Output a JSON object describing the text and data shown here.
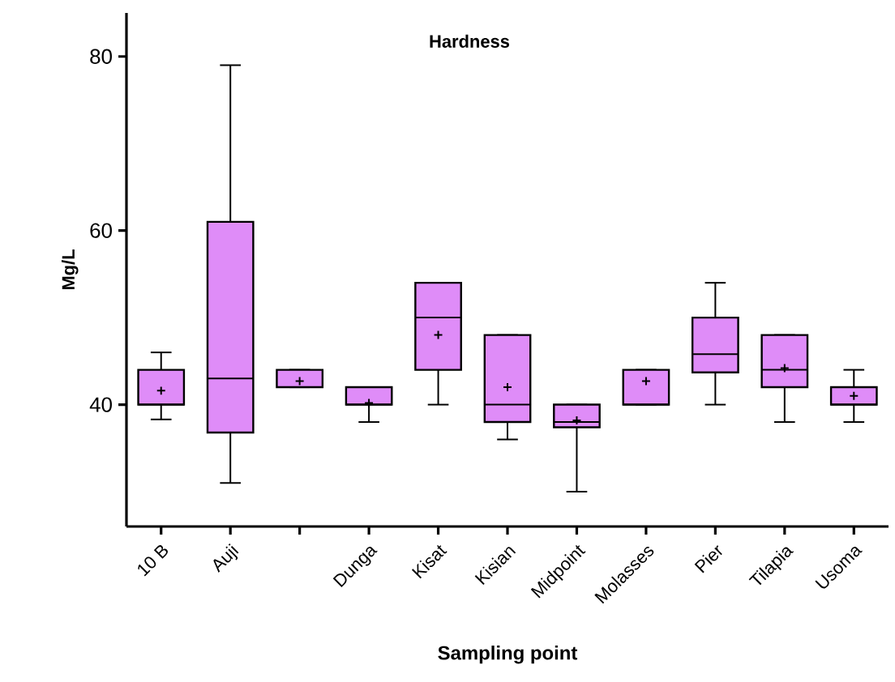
{
  "chart_data": {
    "type": "box",
    "title": "Hardness",
    "xlabel": "Sampling point",
    "ylabel": "Mg/L",
    "categories": [
      "10 B",
      "Auji",
      null,
      "Dunga",
      "Kisat",
      "Kisian",
      "Midpoint",
      "Molasses",
      "Pier",
      "Tilapia",
      "Usoma"
    ],
    "color": "#df8cf8",
    "boxes": [
      {
        "low": 38.3,
        "q1": 40,
        "median": 40,
        "q3": 44,
        "high": 46,
        "mean": 41.6
      },
      {
        "low": 31,
        "q1": 36.8,
        "median": 43,
        "q3": 61,
        "high": 79
      },
      {
        "low": 42,
        "q1": 42,
        "median": 42,
        "q3": 44,
        "high": 44,
        "mean": 42.7
      },
      {
        "low": 38,
        "q1": 40,
        "median": 40,
        "q3": 42,
        "high": 42,
        "mean": 40.2
      },
      {
        "low": 40,
        "q1": 44,
        "median": 50,
        "q3": 54,
        "high": 54,
        "mean": 48
      },
      {
        "low": 36,
        "q1": 38,
        "median": 40,
        "q3": 48,
        "high": 48,
        "mean": 42
      },
      {
        "low": 30,
        "q1": 37.4,
        "median": 38,
        "q3": 40,
        "high": 40,
        "mean": 38.2
      },
      {
        "low": 40,
        "q1": 40,
        "median": 40,
        "q3": 44,
        "high": 44,
        "mean": 42.7
      },
      {
        "low": 40,
        "q1": 43.7,
        "median": 45.8,
        "q3": 50,
        "high": 54
      },
      {
        "low": 38,
        "q1": 42,
        "median": 44,
        "q3": 48,
        "high": 48,
        "mean": 44.2
      },
      {
        "low": 38,
        "q1": 40,
        "median": 40,
        "q3": 42,
        "high": 44,
        "mean": 41
      }
    ],
    "ylim": [
      26,
      85
    ],
    "yticks": [
      40,
      60,
      80
    ],
    "grid": false
  }
}
